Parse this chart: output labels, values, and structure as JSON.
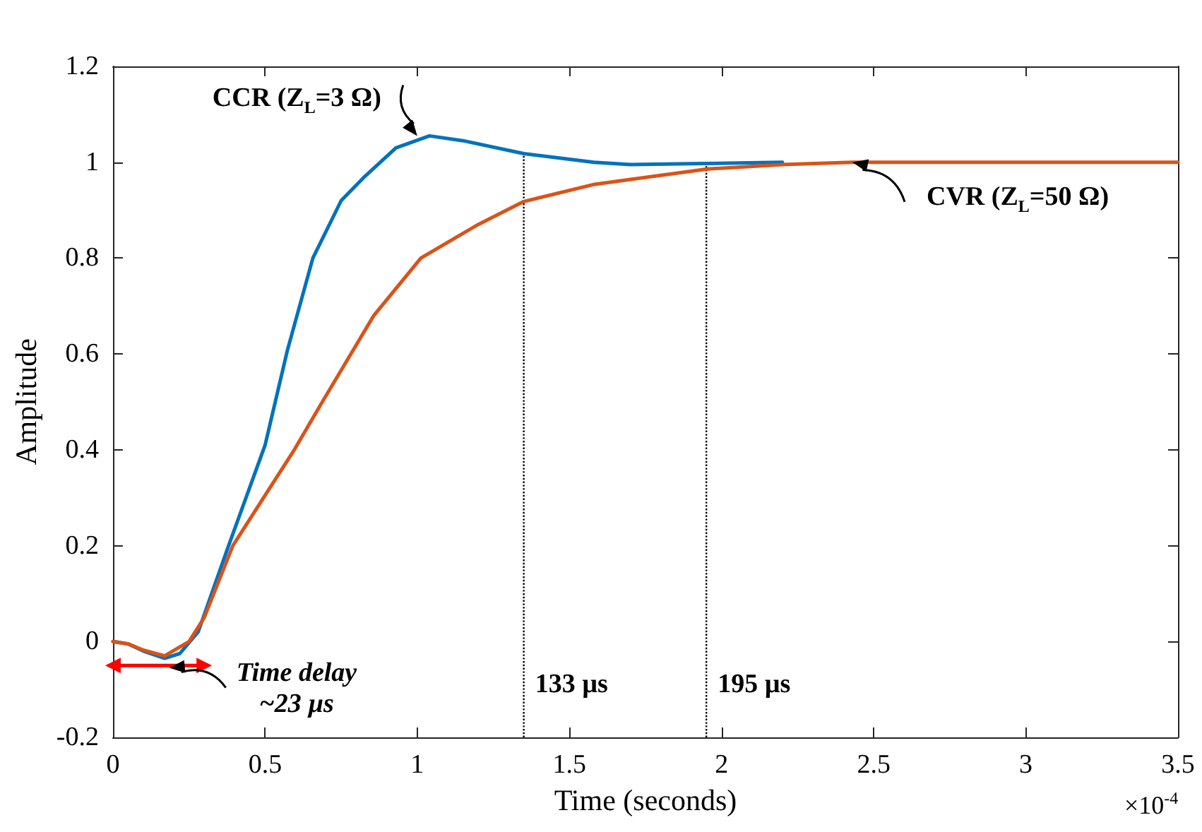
{
  "chart_data": {
    "type": "line",
    "xlabel": "Time (seconds)",
    "ylabel": "Amplitude",
    "xlim": [
      0,
      3.5
    ],
    "xticks": [
      0,
      0.5,
      1,
      1.5,
      2,
      2.5,
      3,
      3.5
    ],
    "ylim": [
      -0.2,
      1.2
    ],
    "yticks": [
      -0.2,
      0,
      0.2,
      0.4,
      0.6,
      0.8,
      1,
      1.2
    ],
    "grid": false,
    "marker": "none",
    "line_style": "solid",
    "series": [
      {
        "color": "#0072bd",
        "x": [
          0,
          0.05,
          0.1,
          0.17,
          0.22,
          0.28,
          0.33,
          0.38,
          0.5,
          0.573,
          0.657,
          0.75,
          0.827,
          0.93,
          1.04,
          1.15,
          1.35,
          1.58,
          1.7,
          1.9,
          2.2
        ],
        "values": [
          0,
          -0.005,
          -0.02,
          -0.035,
          -0.025,
          0.02,
          0.11,
          0.2,
          0.41,
          0.607,
          0.8,
          0.92,
          0.97,
          1.03,
          1.055,
          1.045,
          1.018,
          1.0,
          0.995,
          0.997,
          1.0
        ]
      },
      {
        "color": "#d95319",
        "x": [
          0,
          0.05,
          0.1,
          0.17,
          0.25,
          0.3,
          0.394,
          0.495,
          0.596,
          0.688,
          0.857,
          1.012,
          1.2,
          1.35,
          1.583,
          1.954,
          2.2,
          2.43,
          3.0,
          3.5
        ],
        "values": [
          0,
          -0.005,
          -0.018,
          -0.03,
          0.0,
          0.05,
          0.2,
          0.3,
          0.4,
          0.5,
          0.68,
          0.8,
          0.87,
          0.918,
          0.954,
          0.986,
          0.995,
          1.0,
          1.0,
          1.0
        ]
      },
      {
        "type": "line",
        "color": "#ff0000",
        "marker": "triangle",
        "x": [
          0,
          0.3
        ],
        "values": [
          -0.05,
          -0.05
        ]
      }
    ],
    "ref_lines": [
      {
        "axis": "x",
        "value": 1.35,
        "label": "133 µs",
        "color": "#000000",
        "line_style": "dotted"
      },
      {
        "axis": "x",
        "value": 1.95,
        "label": "195 µs",
        "color": "#000000",
        "line_style": "dotted"
      }
    ],
    "annotations": [
      {
        "text": "CCR (Z$_{L}$=3 Ω)",
        "x": 1.0,
        "y": 1.055
      },
      {
        "text": "CVR (Z$_{L}$=50 Ω)",
        "x": 2.43,
        "y": 1.0
      },
      {
        "text": "Time delay\n~23 µs",
        "x": 0.185,
        "y": -0.055
      },
      "×10$^{-4}$"
    ]
  }
}
